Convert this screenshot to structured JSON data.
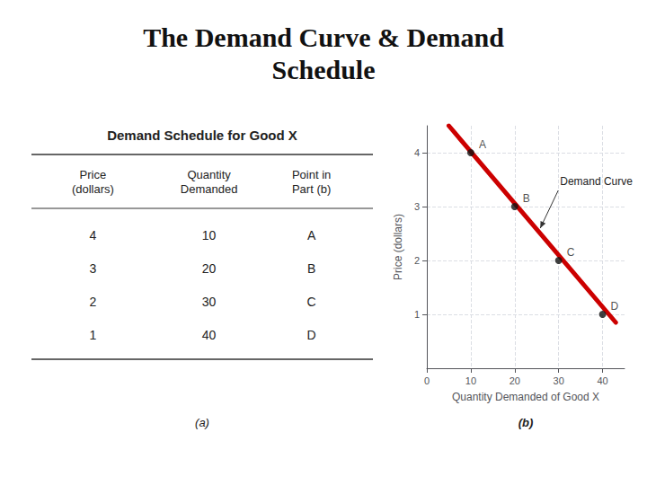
{
  "chart_data": [
    {
      "type": "table",
      "title": "Demand Schedule for Good X",
      "columns": [
        "Price\n(dollars)",
        "Quantity\nDemanded",
        "Point in\nPart (b)"
      ],
      "rows": [
        [
          "4",
          "10",
          "A"
        ],
        [
          "3",
          "20",
          "B"
        ],
        [
          "2",
          "30",
          "C"
        ],
        [
          "1",
          "40",
          "D"
        ]
      ],
      "caption": "(a)"
    },
    {
      "type": "line",
      "title": "The Demand Curve & Demand\nSchedule",
      "xlabel": "Quantity Demanded of Good X",
      "ylabel": "Price (dollars)",
      "xlim": [
        0,
        45
      ],
      "ylim": [
        0,
        4.5
      ],
      "xticks": [
        0,
        10,
        20,
        30,
        40
      ],
      "yticks": [
        1,
        2,
        3,
        4
      ],
      "grid": true,
      "series": [
        {
          "type": "line",
          "color": "#cc0000",
          "x": [
            5,
            43
          ],
          "values": [
            4.5,
            0.85
          ]
        },
        {
          "type": "scatter",
          "color": "#111111",
          "marker": "circle",
          "x": [
            10,
            20,
            30,
            40
          ],
          "values": [
            4,
            3,
            2,
            1
          ],
          "point_labels": [
            "A",
            "B",
            "C",
            "D"
          ]
        }
      ],
      "annotations": [
        "Demand Curve"
      ],
      "caption": "(b)"
    }
  ]
}
